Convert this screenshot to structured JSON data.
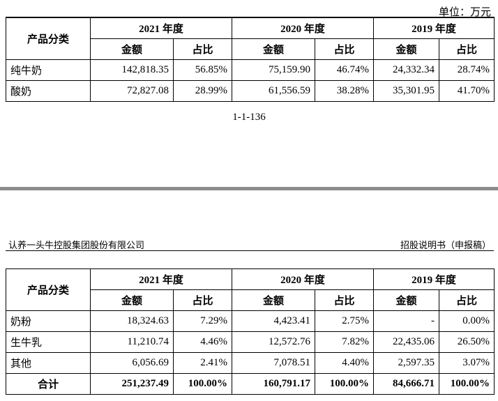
{
  "page1": {
    "unit": "单位：万元",
    "headers": {
      "category": "产品分类",
      "years": [
        "2021 年度",
        "2020 年度",
        "2019 年度"
      ],
      "amount": "金额",
      "ratio": "占比"
    },
    "rows": [
      {
        "name": "纯牛奶",
        "v": [
          "142,818.35",
          "56.85%",
          "75,159.90",
          "46.74%",
          "24,332.34",
          "28.74%"
        ]
      },
      {
        "name": "酸奶",
        "v": [
          "72,827.08",
          "28.99%",
          "61,556.59",
          "38.28%",
          "35,301.95",
          "41.70%"
        ]
      }
    ],
    "page_number": "1-1-136"
  },
  "page2": {
    "company": "认养一头牛控股集团股份有限公司",
    "doc_title": "招股说明书（申报稿）",
    "headers": {
      "category": "产品分类",
      "years": [
        "2021 年度",
        "2020 年度",
        "2019 年度"
      ],
      "amount": "金额",
      "ratio": "占比"
    },
    "rows": [
      {
        "name": "奶粉",
        "v": [
          "18,324.63",
          "7.29%",
          "4,423.41",
          "2.75%",
          "-",
          "0.00%"
        ]
      },
      {
        "name": "生牛乳",
        "v": [
          "11,210.74",
          "4.46%",
          "12,572.76",
          "7.82%",
          "22,435.06",
          "26.50%"
        ]
      },
      {
        "name": "其他",
        "v": [
          "6,056.69",
          "2.41%",
          "7,078.51",
          "4.40%",
          "2,597.35",
          "3.07%"
        ]
      }
    ],
    "total": {
      "name": "合计",
      "v": [
        "251,237.49",
        "100.00%",
        "160,791.17",
        "100.00%",
        "84,666.71",
        "100.00%"
      ]
    }
  }
}
